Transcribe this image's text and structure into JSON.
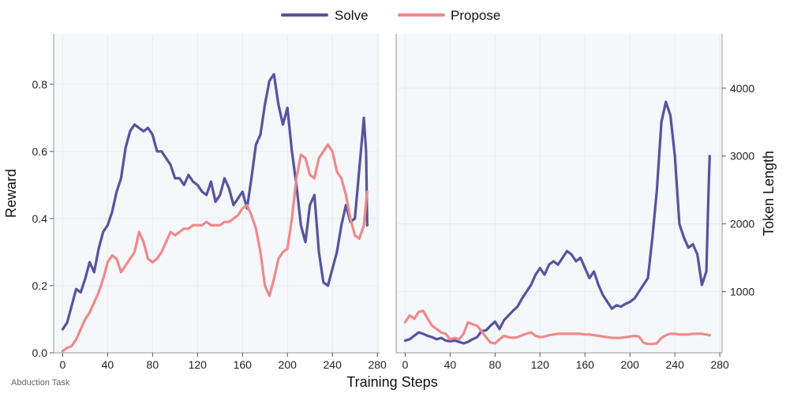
{
  "chart_data": {
    "type": "line",
    "legend": [
      {
        "name": "Solve",
        "color": "#5653a0"
      },
      {
        "name": "Propose",
        "color": "#ee8a8a"
      }
    ],
    "xlabel": "Training Steps",
    "footnote": "Abduction Task",
    "panels": [
      {
        "id": "reward",
        "ylabel": "Reward",
        "xlim": [
          -8,
          282
        ],
        "ylim": [
          0,
          0.95
        ],
        "xticks": [
          0,
          40,
          80,
          120,
          160,
          200,
          240,
          280
        ],
        "yticks": [
          0.0,
          0.2,
          0.4,
          0.6,
          0.8
        ],
        "ytick_labels": [
          "0.0",
          "0.2",
          "0.4",
          "0.6",
          "0.8"
        ],
        "series": [
          {
            "name": "Solve",
            "x": [
              0,
              4,
              8,
              12,
              16,
              20,
              24,
              28,
              32,
              36,
              40,
              44,
              48,
              52,
              56,
              60,
              64,
              68,
              72,
              76,
              80,
              84,
              88,
              92,
              96,
              100,
              104,
              108,
              112,
              116,
              120,
              124,
              128,
              132,
              136,
              140,
              144,
              148,
              152,
              156,
              160,
              164,
              168,
              172,
              176,
              180,
              184,
              188,
              192,
              196,
              200,
              204,
              208,
              212,
              216,
              220,
              224,
              228,
              232,
              236,
              240,
              244,
              248,
              252,
              256,
              260,
              264,
              268,
              270,
              271
            ],
            "values": [
              0.07,
              0.09,
              0.14,
              0.19,
              0.18,
              0.22,
              0.27,
              0.24,
              0.31,
              0.36,
              0.38,
              0.42,
              0.48,
              0.52,
              0.61,
              0.66,
              0.68,
              0.67,
              0.66,
              0.67,
              0.65,
              0.6,
              0.6,
              0.58,
              0.56,
              0.52,
              0.52,
              0.5,
              0.53,
              0.51,
              0.5,
              0.48,
              0.47,
              0.51,
              0.45,
              0.47,
              0.52,
              0.49,
              0.44,
              0.46,
              0.48,
              0.43,
              0.52,
              0.62,
              0.65,
              0.74,
              0.81,
              0.83,
              0.74,
              0.68,
              0.73,
              0.6,
              0.5,
              0.38,
              0.33,
              0.44,
              0.47,
              0.3,
              0.21,
              0.2,
              0.25,
              0.3,
              0.38,
              0.44,
              0.39,
              0.4,
              0.55,
              0.7,
              0.6,
              0.38
            ]
          },
          {
            "name": "Propose",
            "x": [
              0,
              4,
              8,
              12,
              16,
              20,
              24,
              28,
              32,
              36,
              40,
              44,
              48,
              52,
              56,
              60,
              64,
              68,
              72,
              76,
              80,
              84,
              88,
              92,
              96,
              100,
              104,
              108,
              112,
              116,
              120,
              124,
              128,
              132,
              136,
              140,
              144,
              148,
              152,
              156,
              160,
              164,
              168,
              172,
              176,
              180,
              184,
              188,
              192,
              196,
              200,
              204,
              208,
              212,
              216,
              220,
              224,
              228,
              232,
              236,
              240,
              244,
              248,
              252,
              256,
              260,
              264,
              268,
              270,
              271
            ],
            "values": [
              0.005,
              0.015,
              0.02,
              0.04,
              0.07,
              0.1,
              0.12,
              0.15,
              0.18,
              0.22,
              0.27,
              0.29,
              0.28,
              0.24,
              0.26,
              0.28,
              0.3,
              0.36,
              0.33,
              0.28,
              0.27,
              0.28,
              0.3,
              0.33,
              0.36,
              0.35,
              0.36,
              0.37,
              0.37,
              0.38,
              0.38,
              0.38,
              0.39,
              0.38,
              0.38,
              0.38,
              0.39,
              0.39,
              0.4,
              0.41,
              0.43,
              0.44,
              0.41,
              0.37,
              0.3,
              0.2,
              0.17,
              0.22,
              0.28,
              0.3,
              0.31,
              0.4,
              0.52,
              0.59,
              0.58,
              0.53,
              0.52,
              0.58,
              0.6,
              0.62,
              0.6,
              0.54,
              0.52,
              0.47,
              0.4,
              0.35,
              0.34,
              0.38,
              0.45,
              0.48
            ]
          }
        ]
      },
      {
        "id": "token",
        "ylabel": "Token Length",
        "xlim": [
          -8,
          282
        ],
        "ylim": [
          100,
          4800
        ],
        "xticks": [
          0,
          40,
          80,
          120,
          160,
          200,
          240,
          280
        ],
        "yticks": [
          1000,
          2000,
          3000,
          4000
        ],
        "ytick_labels": [
          "1000",
          "2000",
          "3000",
          "4000"
        ],
        "series": [
          {
            "name": "Solve",
            "x": [
              0,
              4,
              8,
              12,
              16,
              20,
              24,
              28,
              32,
              36,
              40,
              44,
              48,
              52,
              56,
              60,
              64,
              68,
              72,
              76,
              80,
              84,
              88,
              92,
              96,
              100,
              104,
              108,
              112,
              116,
              120,
              124,
              128,
              132,
              136,
              140,
              144,
              148,
              152,
              156,
              160,
              164,
              168,
              172,
              176,
              180,
              184,
              188,
              192,
              196,
              200,
              204,
              208,
              212,
              216,
              220,
              224,
              228,
              232,
              236,
              240,
              244,
              248,
              252,
              256,
              260,
              264,
              268,
              270,
              271
            ],
            "values": [
              280,
              300,
              350,
              400,
              380,
              350,
              330,
              300,
              320,
              280,
              270,
              280,
              260,
              240,
              260,
              300,
              330,
              420,
              430,
              500,
              560,
              450,
              580,
              650,
              720,
              780,
              900,
              1000,
              1100,
              1250,
              1350,
              1250,
              1400,
              1450,
              1400,
              1500,
              1600,
              1550,
              1450,
              1500,
              1350,
              1200,
              1300,
              1100,
              950,
              850,
              750,
              800,
              780,
              820,
              850,
              900,
              1000,
              1100,
              1200,
              1800,
              2500,
              3500,
              3800,
              3600,
              3000,
              2000,
              1800,
              1650,
              1700,
              1550,
              1100,
              1300,
              2500,
              3000
            ]
          },
          {
            "name": "Propose",
            "x": [
              0,
              4,
              8,
              12,
              16,
              20,
              24,
              28,
              32,
              36,
              40,
              44,
              48,
              52,
              56,
              60,
              64,
              68,
              72,
              76,
              80,
              84,
              88,
              92,
              96,
              100,
              104,
              108,
              112,
              116,
              120,
              124,
              128,
              132,
              136,
              140,
              144,
              148,
              152,
              156,
              160,
              164,
              168,
              172,
              176,
              180,
              184,
              188,
              192,
              196,
              200,
              204,
              208,
              212,
              216,
              220,
              224,
              228,
              232,
              236,
              240,
              244,
              248,
              252,
              256,
              260,
              264,
              268,
              270,
              271
            ],
            "values": [
              550,
              650,
              600,
              700,
              720,
              600,
              500,
              450,
              400,
              380,
              300,
              320,
              300,
              380,
              550,
              520,
              500,
              420,
              330,
              250,
              240,
              300,
              350,
              330,
              320,
              330,
              360,
              380,
              400,
              350,
              330,
              340,
              360,
              370,
              380,
              380,
              380,
              380,
              380,
              380,
              370,
              370,
              360,
              350,
              340,
              330,
              320,
              320,
              320,
              330,
              340,
              350,
              340,
              250,
              230,
              230,
              240,
              320,
              360,
              380,
              380,
              370,
              370,
              370,
              380,
              380,
              380,
              370,
              360,
              360
            ]
          }
        ]
      }
    ]
  }
}
